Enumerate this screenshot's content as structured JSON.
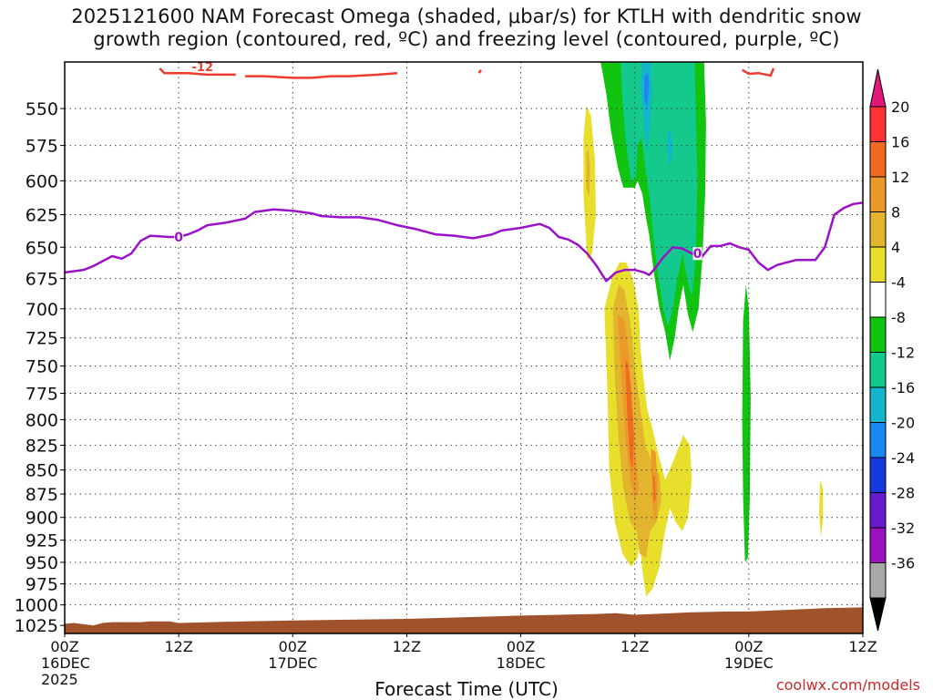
{
  "title_line1": "2025121600 NAM Forecast Omega (shaded, μbar/s) for KTLH with dendritic snow",
  "title_line2": "growth region (contoured, red, ºC) and freezing level (contoured, purple, ºC)",
  "watermark": "coolwx.com/models",
  "chart_data": {
    "type": "heatmap",
    "xlabel": "Forecast Time (UTC)",
    "ylabel": "",
    "x_range_hours": [
      0,
      84
    ],
    "y_range_hpa": [
      520,
      1035
    ],
    "y_scale": "log-pressure",
    "grid": true,
    "x_ticks": [
      {
        "h": 0,
        "labels": [
          "00Z",
          "16DEC",
          "2025"
        ]
      },
      {
        "h": 12,
        "labels": [
          "12Z"
        ]
      },
      {
        "h": 24,
        "labels": [
          "00Z",
          "17DEC"
        ]
      },
      {
        "h": 36,
        "labels": [
          "12Z"
        ]
      },
      {
        "h": 48,
        "labels": [
          "00Z",
          "18DEC"
        ]
      },
      {
        "h": 60,
        "labels": [
          "12Z"
        ]
      },
      {
        "h": 72,
        "labels": [
          "00Z",
          "19DEC"
        ]
      },
      {
        "h": 84,
        "labels": [
          "12Z"
        ]
      }
    ],
    "y_ticks": [
      550,
      575,
      600,
      625,
      650,
      675,
      700,
      725,
      750,
      775,
      800,
      825,
      850,
      875,
      900,
      925,
      950,
      975,
      1000,
      1025
    ],
    "colorbar": {
      "labels": [
        "20",
        "16",
        "12",
        "8",
        "4",
        "-4",
        "-8",
        "-12",
        "-16",
        "-20",
        "-24",
        "-28",
        "-32",
        "-36"
      ],
      "colors": [
        "#ff3333",
        "#f06a22",
        "#eb9a2a",
        "#e3b42e",
        "#e8df2c",
        "#ffffff",
        "#10c410",
        "#14c98c",
        "#14b4cc",
        "#1a88ee",
        "#1838e0",
        "#6a18cc",
        "#9a12bc",
        "#a8a8a8"
      ],
      "top_arrow_color": "#e0187a",
      "bottom_arrow_color": "#000000"
    },
    "freezing_level_label": "0",
    "freezing_level_color": "#9b12c8",
    "freezing_level": [
      [
        0,
        670
      ],
      [
        2,
        668
      ],
      [
        3,
        665
      ],
      [
        5,
        657
      ],
      [
        6,
        659
      ],
      [
        7,
        655
      ],
      [
        8,
        645
      ],
      [
        9,
        641
      ],
      [
        11,
        642
      ],
      [
        12,
        642
      ],
      [
        13,
        640
      ],
      [
        14,
        637
      ],
      [
        15,
        633
      ],
      [
        17,
        631
      ],
      [
        19,
        628
      ],
      [
        20,
        623
      ],
      [
        22,
        621
      ],
      [
        24,
        622
      ],
      [
        26,
        624
      ],
      [
        27,
        626
      ],
      [
        29,
        627
      ],
      [
        31,
        627
      ],
      [
        33,
        629
      ],
      [
        35,
        633
      ],
      [
        37,
        636
      ],
      [
        39,
        640
      ],
      [
        41,
        641
      ],
      [
        43,
        643
      ],
      [
        45,
        640
      ],
      [
        46,
        637
      ],
      [
        48,
        635
      ],
      [
        50,
        632
      ],
      [
        51,
        635
      ],
      [
        52,
        642
      ],
      [
        53,
        644
      ],
      [
        54,
        648
      ],
      [
        55,
        655
      ],
      [
        56,
        665
      ],
      [
        57,
        677
      ],
      [
        58,
        670
      ],
      [
        59,
        668
      ],
      [
        60,
        668
      ],
      [
        61,
        670
      ],
      [
        61.5,
        672
      ],
      [
        62,
        668
      ],
      [
        63,
        658
      ],
      [
        64,
        650
      ],
      [
        65,
        651
      ],
      [
        66,
        655
      ],
      [
        67,
        658
      ],
      [
        68,
        649
      ],
      [
        69,
        649
      ],
      [
        70,
        647
      ],
      [
        71,
        650
      ],
      [
        72,
        652
      ],
      [
        73,
        662
      ],
      [
        74,
        668
      ],
      [
        75,
        664
      ],
      [
        77,
        660
      ],
      [
        79,
        660
      ],
      [
        80,
        650
      ],
      [
        81,
        625
      ],
      [
        82,
        620
      ],
      [
        83,
        617
      ],
      [
        84,
        616
      ]
    ],
    "dgz_label": "-12",
    "dgz_color": "#ee3b2e",
    "dgz_top_segments": [
      [
        [
          10,
          524
        ],
        [
          10.5,
          527
        ],
        [
          13,
          527
        ],
        [
          15,
          528
        ],
        [
          18,
          528
        ]
      ],
      [
        [
          19,
          529
        ],
        [
          21,
          529
        ],
        [
          24,
          530
        ],
        [
          26,
          530
        ],
        [
          28,
          529
        ],
        [
          30,
          529
        ],
        [
          33,
          528
        ],
        [
          35,
          527
        ]
      ],
      [
        [
          43.6,
          527
        ],
        [
          43.8,
          525
        ]
      ],
      [
        [
          71.3,
          525
        ],
        [
          72,
          527.5
        ],
        [
          73,
          527
        ],
        [
          74.3,
          528.5
        ],
        [
          74.6,
          524
        ]
      ]
    ],
    "omega_regions": [
      {
        "v": -8,
        "pts": [
          [
            56.4,
            520
          ],
          [
            57.0,
            540
          ],
          [
            57.5,
            565
          ],
          [
            58.2,
            590
          ],
          [
            58.8,
            605
          ],
          [
            60.0,
            605
          ],
          [
            60.3,
            600
          ],
          [
            60.8,
            610
          ],
          [
            61.2,
            628
          ],
          [
            61.5,
            640
          ],
          [
            62.0,
            670
          ],
          [
            62.6,
            700
          ],
          [
            63.2,
            720
          ],
          [
            63.7,
            745
          ],
          [
            64.2,
            725
          ],
          [
            64.6,
            700
          ],
          [
            65.1,
            680
          ],
          [
            65.6,
            705
          ],
          [
            66.1,
            720
          ],
          [
            66.7,
            700
          ],
          [
            67.1,
            660
          ],
          [
            67.4,
            610
          ],
          [
            67.5,
            560
          ],
          [
            67.3,
            520
          ]
        ]
      },
      {
        "v": -12,
        "pts": [
          [
            58.5,
            520
          ],
          [
            58.7,
            545
          ],
          [
            59.1,
            575
          ],
          [
            59.6,
            600
          ],
          [
            60.1,
            598
          ],
          [
            60.3,
            575
          ],
          [
            60.7,
            570
          ],
          [
            61.1,
            590
          ],
          [
            61.6,
            615
          ],
          [
            62.0,
            645
          ],
          [
            62.5,
            675
          ],
          [
            63.0,
            700
          ],
          [
            63.5,
            715
          ],
          [
            64.0,
            700
          ],
          [
            64.5,
            675
          ],
          [
            65.0,
            655
          ],
          [
            65.5,
            675
          ],
          [
            66.0,
            690
          ],
          [
            66.4,
            660
          ],
          [
            66.6,
            600
          ],
          [
            66.3,
            520
          ]
        ]
      },
      {
        "v": -16,
        "pts": [
          [
            60.8,
            520
          ],
          [
            60.6,
            535
          ],
          [
            61.0,
            560
          ],
          [
            61.3,
            578
          ],
          [
            61.6,
            560
          ],
          [
            61.8,
            540
          ],
          [
            61.7,
            520
          ]
        ]
      },
      {
        "v": -20,
        "pts": [
          [
            61.0,
            529
          ],
          [
            61.0,
            545
          ],
          [
            61.3,
            548
          ],
          [
            61.5,
            536
          ],
          [
            61.4,
            527
          ]
        ]
      },
      {
        "v": -16,
        "pts": [
          [
            63.5,
            565
          ],
          [
            63.4,
            580
          ],
          [
            63.7,
            590
          ],
          [
            64.0,
            577
          ],
          [
            63.8,
            565
          ]
        ]
      },
      {
        "v": -8,
        "pts": [
          [
            71.7,
            680
          ],
          [
            71.4,
            710
          ],
          [
            71.3,
            800
          ],
          [
            71.4,
            880
          ],
          [
            71.6,
            950
          ],
          [
            71.9,
            945
          ],
          [
            72.1,
            880
          ],
          [
            72.2,
            780
          ],
          [
            72.0,
            700
          ]
        ]
      },
      {
        "v": 4,
        "pts": [
          [
            54.9,
            548
          ],
          [
            54.6,
            570
          ],
          [
            54.6,
            610
          ],
          [
            55.0,
            660
          ],
          [
            55.5,
            655
          ],
          [
            55.9,
            625
          ],
          [
            55.8,
            585
          ],
          [
            55.4,
            555
          ]
        ]
      },
      {
        "v": 8,
        "pts": [
          [
            54.9,
            580
          ],
          [
            54.9,
            605
          ],
          [
            55.2,
            612
          ],
          [
            55.3,
            590
          ],
          [
            55.1,
            578
          ]
        ]
      },
      {
        "v": 4,
        "pts": [
          [
            56.8,
            700
          ],
          [
            57.1,
            770
          ],
          [
            57.3,
            850
          ],
          [
            57.9,
            905
          ],
          [
            58.7,
            940
          ],
          [
            59.6,
            955
          ],
          [
            60.3,
            945
          ],
          [
            60.5,
            925
          ],
          [
            60.8,
            960
          ],
          [
            61.2,
            990
          ],
          [
            61.9,
            980
          ],
          [
            62.6,
            955
          ],
          [
            63.1,
            920
          ],
          [
            63.7,
            890
          ],
          [
            64.3,
            905
          ],
          [
            65.0,
            915
          ],
          [
            65.6,
            900
          ],
          [
            66.0,
            860
          ],
          [
            65.8,
            825
          ],
          [
            65.1,
            815
          ],
          [
            64.1,
            840
          ],
          [
            63.2,
            860
          ],
          [
            62.5,
            835
          ],
          [
            61.9,
            810
          ],
          [
            61.3,
            790
          ],
          [
            60.9,
            760
          ],
          [
            60.6,
            735
          ],
          [
            60.4,
            700
          ],
          [
            59.8,
            675
          ],
          [
            59.1,
            662
          ],
          [
            58.4,
            662
          ],
          [
            57.7,
            672
          ]
        ]
      },
      {
        "v": 8,
        "pts": [
          [
            57.7,
            700
          ],
          [
            57.9,
            760
          ],
          [
            58.3,
            820
          ],
          [
            58.8,
            870
          ],
          [
            59.5,
            905
          ],
          [
            60.2,
            915
          ],
          [
            60.5,
            940
          ],
          [
            61.2,
            945
          ],
          [
            61.6,
            915
          ],
          [
            62.3,
            905
          ],
          [
            62.8,
            880
          ],
          [
            62.6,
            855
          ],
          [
            61.9,
            845
          ],
          [
            61.1,
            825
          ],
          [
            60.6,
            790
          ],
          [
            60.0,
            750
          ],
          [
            59.5,
            710
          ],
          [
            58.9,
            684
          ],
          [
            58.3,
            680
          ]
        ]
      },
      {
        "v": 12,
        "pts": [
          [
            58.2,
            705
          ],
          [
            58.6,
            760
          ],
          [
            59.0,
            815
          ],
          [
            59.5,
            860
          ],
          [
            60.0,
            880
          ],
          [
            60.4,
            870
          ],
          [
            60.1,
            830
          ],
          [
            59.7,
            785
          ],
          [
            59.4,
            740
          ],
          [
            58.9,
            710
          ]
        ]
      },
      {
        "v": 16,
        "pts": [
          [
            59.0,
            745
          ],
          [
            59.2,
            795
          ],
          [
            59.5,
            840
          ],
          [
            59.8,
            850
          ],
          [
            59.9,
            815
          ],
          [
            59.6,
            770
          ],
          [
            59.3,
            748
          ]
        ]
      },
      {
        "v": 12,
        "pts": [
          [
            61.7,
            828
          ],
          [
            61.8,
            870
          ],
          [
            62.0,
            905
          ],
          [
            62.3,
            900
          ],
          [
            62.4,
            865
          ],
          [
            62.2,
            832
          ]
        ]
      },
      {
        "v": 16,
        "pts": [
          [
            61.9,
            855
          ],
          [
            62.0,
            885
          ],
          [
            62.2,
            880
          ],
          [
            62.1,
            857
          ]
        ]
      },
      {
        "v": 4,
        "pts": [
          [
            79.5,
            860
          ],
          [
            79.4,
            895
          ],
          [
            79.6,
            922
          ],
          [
            79.8,
            900
          ],
          [
            79.8,
            870
          ]
        ]
      }
    ],
    "terrain_color": "#a0522d",
    "terrain_bottom_hpa": 1035,
    "surface_pressure": [
      [
        0,
        1023
      ],
      [
        1,
        1022
      ],
      [
        3,
        1025
      ],
      [
        4,
        1022
      ],
      [
        5,
        1021
      ],
      [
        8,
        1021
      ],
      [
        9,
        1020
      ],
      [
        11,
        1020
      ],
      [
        12,
        1022
      ],
      [
        19,
        1020
      ],
      [
        24,
        1019
      ],
      [
        30,
        1018
      ],
      [
        36,
        1017
      ],
      [
        42,
        1015
      ],
      [
        48,
        1013
      ],
      [
        52,
        1012
      ],
      [
        56,
        1011
      ],
      [
        58,
        1010
      ],
      [
        60,
        1012
      ],
      [
        62,
        1011
      ],
      [
        66,
        1009
      ],
      [
        70,
        1008
      ],
      [
        72,
        1008
      ],
      [
        76,
        1006
      ],
      [
        80,
        1004
      ],
      [
        84,
        1003
      ]
    ]
  }
}
